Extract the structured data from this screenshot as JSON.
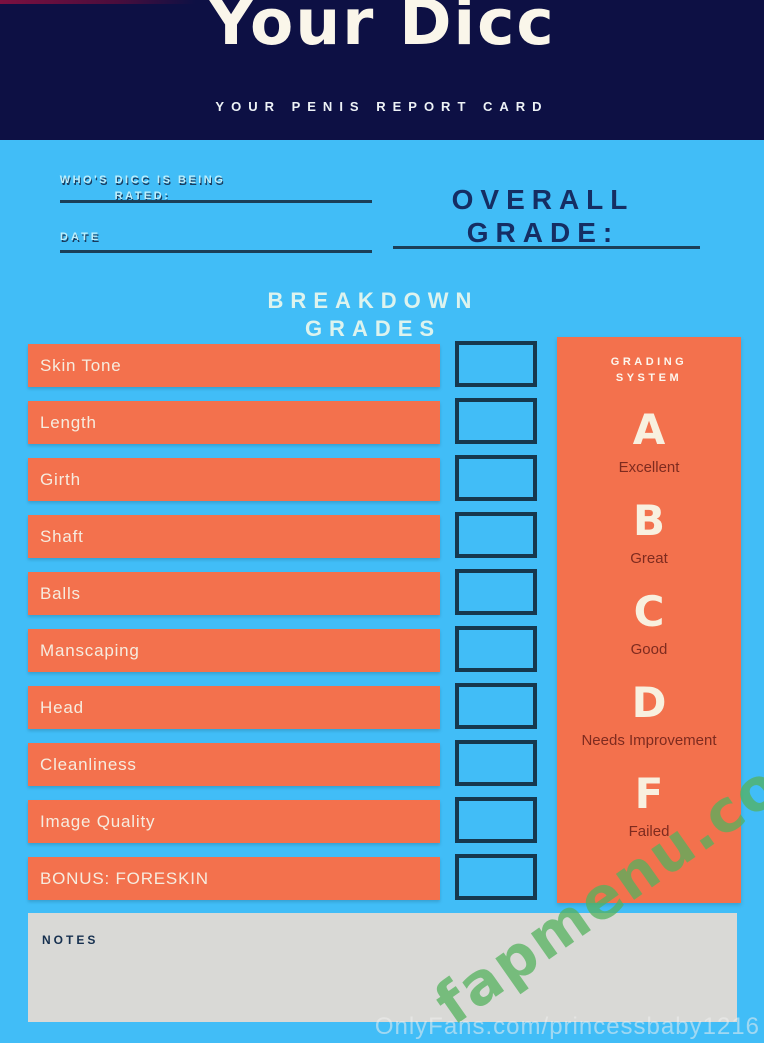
{
  "header": {
    "title": "Your Dicc",
    "subtitle": "YOUR PENIS REPORT CARD"
  },
  "form": {
    "who_label_line1": "WHO'S DICC IS BEING",
    "who_label_line2": "RATED:",
    "date_label": "DATE",
    "overall_label_line1": "OVERALL",
    "overall_label_line2": "GRADE:"
  },
  "breakdown": {
    "heading_line1": "BREAKDOWN",
    "heading_line2": "GRADES",
    "items": [
      "Skin Tone",
      "Length",
      "Girth",
      "Shaft",
      "Balls",
      "Manscaping",
      "Head",
      "Cleanliness",
      "Image Quality",
      "BONUS: FORESKIN"
    ]
  },
  "grading": {
    "heading_line1": "GRADING",
    "heading_line2": "SYSTEM",
    "scale": [
      {
        "grade": "A",
        "label": "Excellent"
      },
      {
        "grade": "B",
        "label": "Great"
      },
      {
        "grade": "C",
        "label": "Good"
      },
      {
        "grade": "D",
        "label": "Needs Improvement"
      },
      {
        "grade": "F",
        "label": "Failed"
      }
    ]
  },
  "notes": {
    "label": "NOTES"
  },
  "watermarks": {
    "diagonal": "fapmenu.com",
    "bottom": "OnlyFans.com/princessbaby1216"
  },
  "colors": {
    "background": "#41bdf7",
    "header": "#0d1044",
    "bar": "#f3714d",
    "box_border": "#16384e",
    "notes_box": "#d9d9d6",
    "navy_text": "#152e63",
    "watermark_green": "#54b25e"
  }
}
